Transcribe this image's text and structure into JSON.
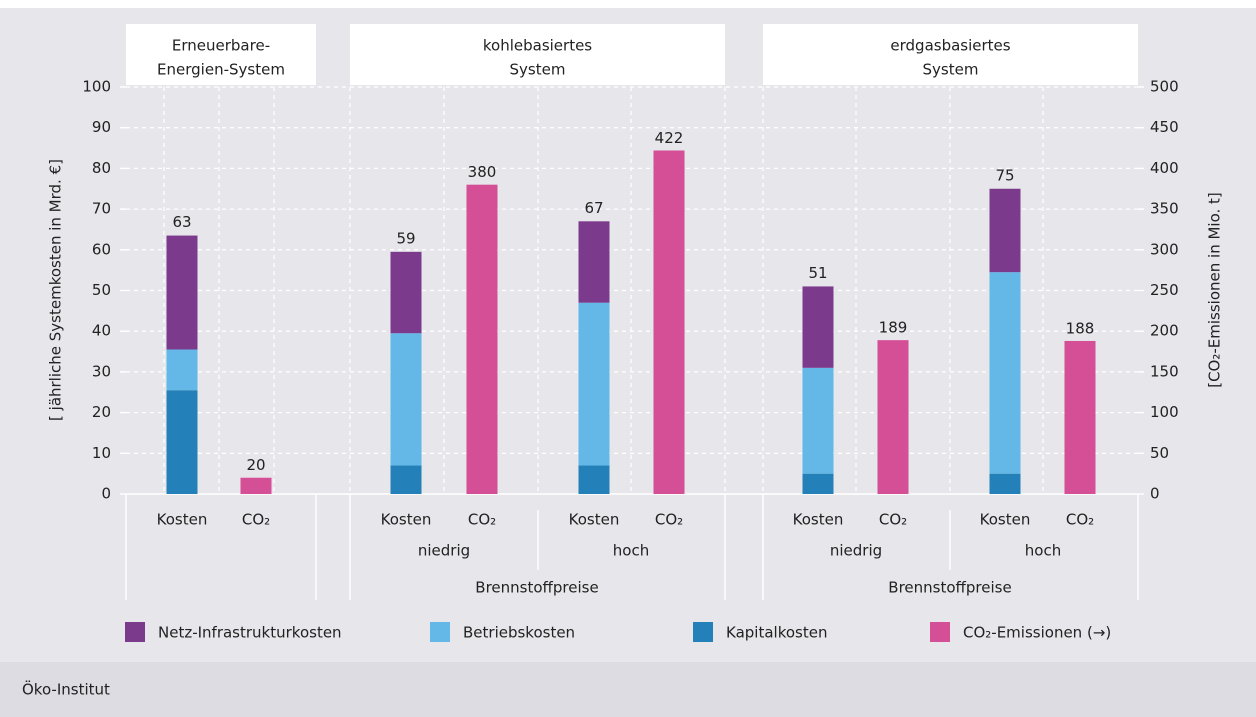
{
  "chart_data": {
    "type": "bar",
    "y_axis_label": "[ jährliche Systemkosten in Mrd. €]",
    "y2_axis_label": "[CO₂-Emissionen in Mio. t]",
    "categories": [
      "Kosten",
      "CO₂",
      "Kosten",
      "CO₂",
      "Kosten",
      "CO₂",
      "Kosten",
      "CO₂",
      "Kosten",
      "CO₂"
    ],
    "subgroups": [
      "niedrig",
      "hoch",
      "niedrig",
      "hoch"
    ],
    "panels": [
      {
        "title": [
          "Erneuerbare-",
          "Energien-System"
        ]
      },
      {
        "title": [
          "kohlebasiertes",
          "System"
        ],
        "axis_label": "Brennstoffpreise"
      },
      {
        "title": [
          "erdgasbasiertes",
          "System"
        ],
        "axis_label": "Brennstoffpreise"
      }
    ],
    "series": [
      {
        "name": "Netz-Infrastrukturkosten",
        "color": "#7b3a8c",
        "values": [
          28,
          null,
          20,
          null,
          20,
          null,
          20,
          null,
          20.5,
          null
        ]
      },
      {
        "name": "Betriebskosten",
        "color": "#63b8e8",
        "values": [
          10,
          null,
          32.5,
          null,
          40,
          null,
          26,
          null,
          49.5,
          null
        ]
      },
      {
        "name": "Kapitalkosten",
        "color": "#2480b8",
        "values": [
          25.5,
          null,
          7,
          null,
          7,
          null,
          5,
          null,
          5,
          null
        ]
      },
      {
        "name": "CO₂-Emissionen (→)",
        "color": "#d44f95",
        "axis": "y2",
        "values": [
          null,
          20,
          null,
          380,
          null,
          422,
          null,
          189,
          null,
          188
        ]
      }
    ],
    "totals": [
      63,
      null,
      59,
      null,
      67,
      null,
      51,
      null,
      75,
      null
    ],
    "ylim": [
      0,
      100
    ],
    "yticks": [
      0,
      10,
      20,
      30,
      40,
      50,
      60,
      70,
      80,
      90,
      100
    ],
    "y2lim": [
      0,
      500
    ],
    "y2ticks": [
      0,
      50,
      100,
      150,
      200,
      250,
      300,
      350,
      400,
      450,
      500
    ],
    "grid": true,
    "source": "Öko-Institut"
  }
}
